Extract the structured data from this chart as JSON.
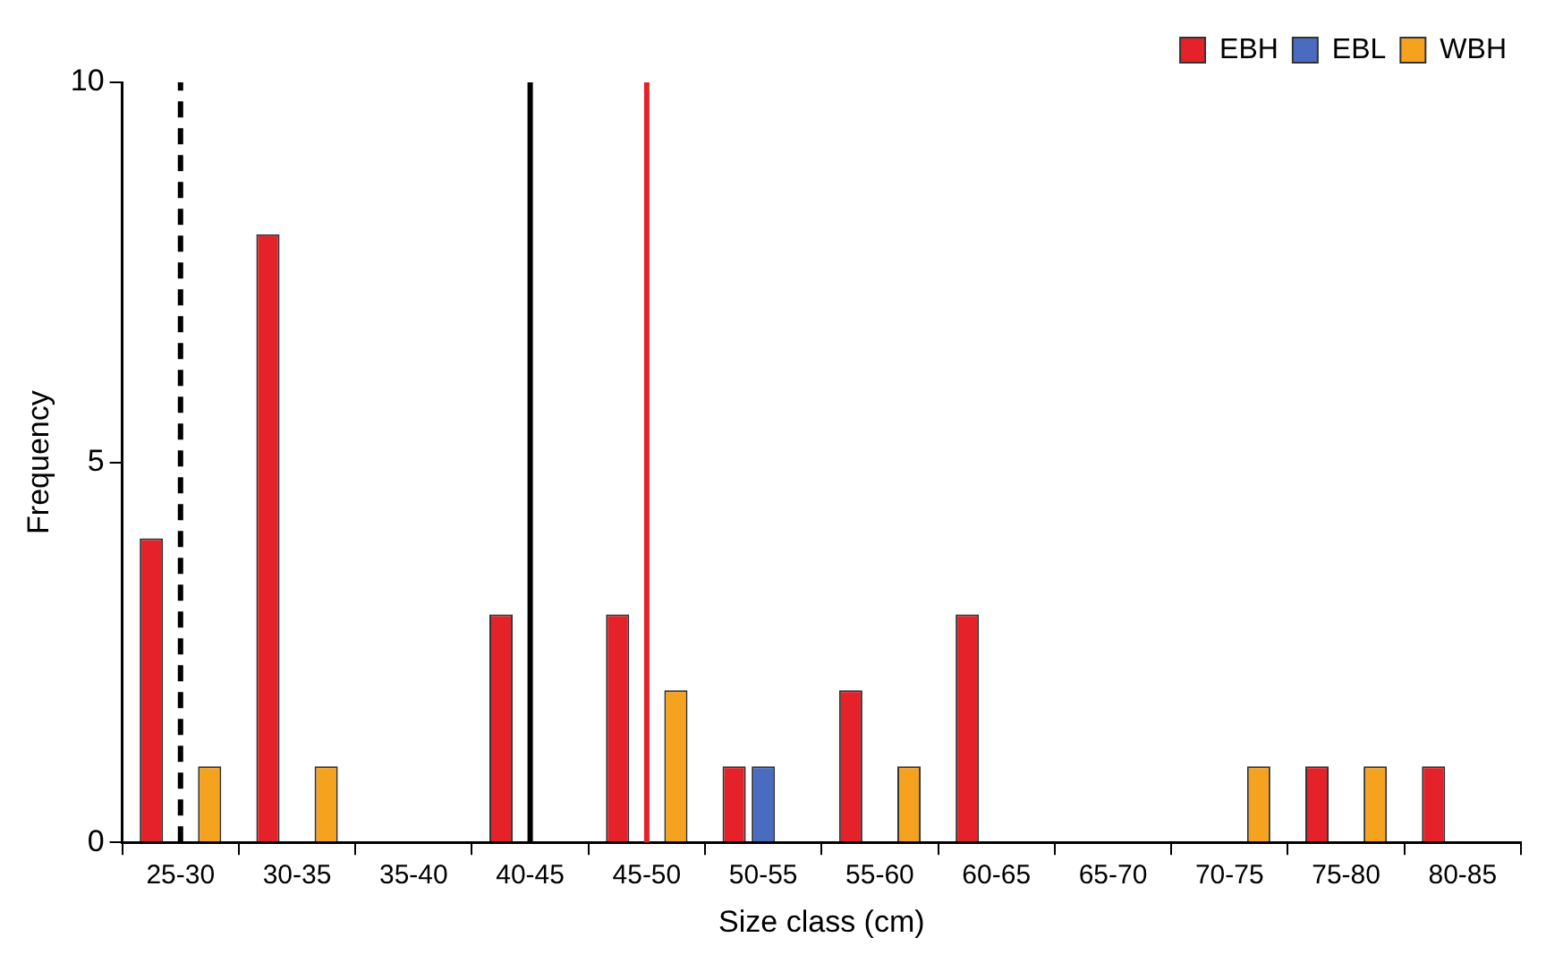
{
  "chart_data": {
    "type": "bar",
    "xlabel": "Size class (cm)",
    "ylabel": "Frequency",
    "categories": [
      "25-30",
      "30-35",
      "35-40",
      "40-45",
      "45-50",
      "50-55",
      "55-60",
      "60-65",
      "65-70",
      "70-75",
      "75-80",
      "80-85"
    ],
    "series": [
      {
        "name": "EBH",
        "color": "#e52229",
        "values": [
          4,
          8,
          0,
          3,
          3,
          1,
          2,
          3,
          0,
          0,
          1,
          1
        ]
      },
      {
        "name": "EBL",
        "color": "#4a6cc0",
        "values": [
          0,
          0,
          0,
          0,
          0,
          1,
          0,
          0,
          0,
          0,
          0,
          0
        ]
      },
      {
        "name": "WBH",
        "color": "#f5a21f",
        "values": [
          1,
          1,
          0,
          0,
          2,
          0,
          1,
          0,
          0,
          1,
          1,
          0
        ]
      }
    ],
    "ylim": [
      0,
      10
    ],
    "yticks": [
      0,
      5,
      10
    ],
    "ref_lines": [
      {
        "axis": "x",
        "value": "25-30",
        "label": null,
        "color": "#000000",
        "line_style": "dashed"
      },
      {
        "axis": "x",
        "value": "40-45",
        "label": null,
        "color": "#000000",
        "line_style": "solid"
      },
      {
        "axis": "x",
        "value": "45-50",
        "label": null,
        "color": "#e52229",
        "line_style": "solid"
      }
    ],
    "legend": "top right",
    "grid": false
  }
}
